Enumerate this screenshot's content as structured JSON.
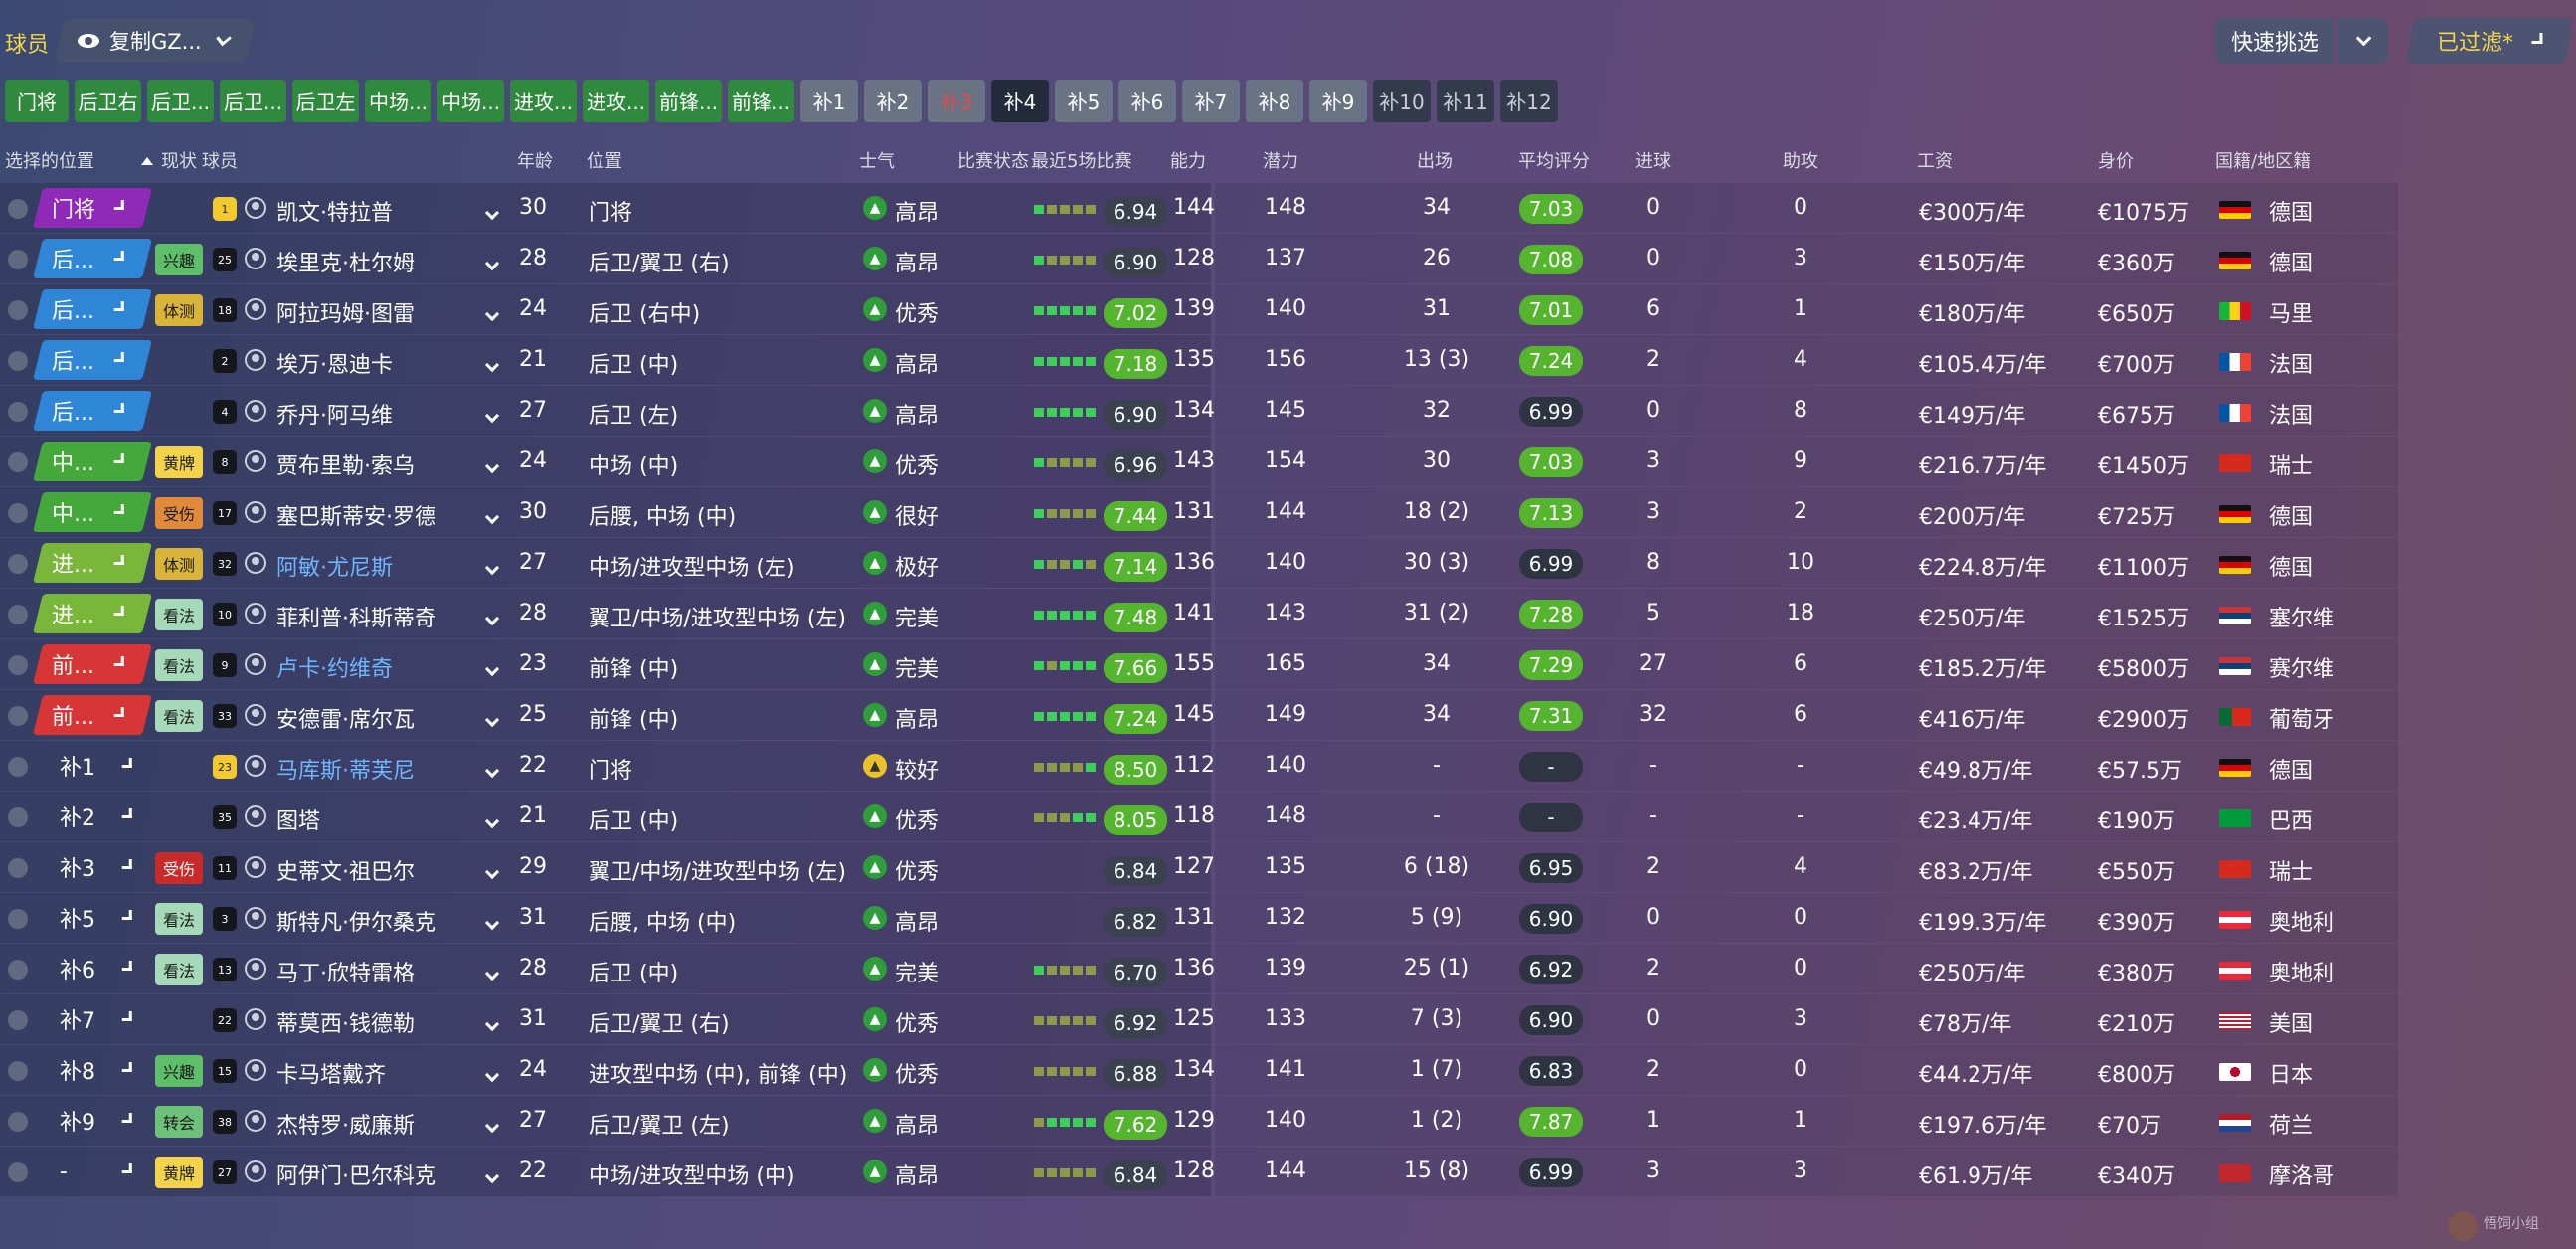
{
  "toolbar": {
    "section_label": "球员",
    "view_label": "复制GZ...",
    "quick_pick": "快速挑选",
    "filter_label": "已过滤*"
  },
  "chips": [
    {
      "label": "门将",
      "style": "g",
      "w": 64
    },
    {
      "label": "后卫右",
      "style": "g",
      "w": 67
    },
    {
      "label": "后卫...",
      "style": "g",
      "w": 67
    },
    {
      "label": "后卫...",
      "style": "g",
      "w": 67
    },
    {
      "label": "后卫左",
      "style": "g",
      "w": 67
    },
    {
      "label": "中场...",
      "style": "g",
      "w": 67
    },
    {
      "label": "中场...",
      "style": "g",
      "w": 67
    },
    {
      "label": "进攻...",
      "style": "g",
      "w": 67
    },
    {
      "label": "进攻...",
      "style": "g",
      "w": 67
    },
    {
      "label": "前锋...",
      "style": "g",
      "w": 67
    },
    {
      "label": "前锋...",
      "style": "g",
      "w": 67
    },
    {
      "label": "补1",
      "style": "s",
      "w": 58
    },
    {
      "label": "补2",
      "style": "s",
      "w": 58
    },
    {
      "label": "补3",
      "style": "r",
      "w": 58
    },
    {
      "label": "补4",
      "style": "d",
      "w": 58
    },
    {
      "label": "补5",
      "style": "s",
      "w": 58
    },
    {
      "label": "补6",
      "style": "s",
      "w": 58
    },
    {
      "label": "补7",
      "style": "s",
      "w": 58
    },
    {
      "label": "补8",
      "style": "s",
      "w": 58
    },
    {
      "label": "补9",
      "style": "s",
      "w": 58
    },
    {
      "label": "补10",
      "style": "k",
      "w": 58
    },
    {
      "label": "补11",
      "style": "k",
      "w": 58
    },
    {
      "label": "补12",
      "style": "k",
      "w": 58
    }
  ],
  "headers": {
    "sel_pos": "选择的位置",
    "status": "现状",
    "player": "球员",
    "age": "年龄",
    "position": "位置",
    "morale": "士气",
    "match_state": "比赛状态",
    "last5": "最近5场比赛",
    "ability": "能力",
    "potential": "潜力",
    "apps": "出场",
    "avg": "平均评分",
    "goals": "进球",
    "assists": "助攻",
    "wage": "工资",
    "value": "身价",
    "nation": "国籍/地区籍"
  },
  "players": [
    {
      "sel": "门将",
      "pc": "gk",
      "badge": "",
      "bc": "",
      "num": "1",
      "gk": true,
      "name": "凯文·特拉普",
      "link": false,
      "age": "30",
      "pos": "门将",
      "mood": "高昂",
      "my": false,
      "form": [
        1,
        0,
        0,
        0,
        0
      ],
      "avg": "6.94",
      "ag": false,
      "ab": "144",
      "pot": "148",
      "apps": "34",
      "rt": "7.03",
      "rg": true,
      "g": "0",
      "a": "0",
      "wage": "€300万/年",
      "val": "€1075万",
      "flag": "de",
      "nat": "德国"
    },
    {
      "sel": "后...",
      "pc": "df",
      "badge": "兴趣",
      "bc": "int",
      "num": "25",
      "gk": false,
      "name": "埃里克·杜尔姆",
      "link": false,
      "age": "28",
      "pos": "后卫/翼卫 (右)",
      "mood": "高昂",
      "my": false,
      "form": [
        1,
        0,
        0,
        0,
        0
      ],
      "avg": "6.90",
      "ag": false,
      "ab": "128",
      "pot": "137",
      "apps": "26",
      "rt": "7.08",
      "rg": true,
      "g": "0",
      "a": "3",
      "wage": "€150万/年",
      "val": "€360万",
      "flag": "de",
      "nat": "德国"
    },
    {
      "sel": "后...",
      "pc": "df",
      "badge": "体测",
      "bc": "fit",
      "num": "18",
      "gk": false,
      "name": "阿拉玛姆·图雷",
      "link": false,
      "age": "24",
      "pos": "后卫 (右中)",
      "mood": "优秀",
      "my": false,
      "form": [
        1,
        1,
        1,
        1,
        1
      ],
      "avg": "7.02",
      "ag": true,
      "ab": "139",
      "pot": "140",
      "apps": "31",
      "rt": "7.01",
      "rg": true,
      "g": "6",
      "a": "1",
      "wage": "€180万/年",
      "val": "€650万",
      "flag": "ml",
      "nat": "马里"
    },
    {
      "sel": "后...",
      "pc": "df",
      "badge": "",
      "bc": "",
      "num": "2",
      "gk": false,
      "name": "埃万·恩迪卡",
      "link": false,
      "age": "21",
      "pos": "后卫 (中)",
      "mood": "高昂",
      "my": false,
      "form": [
        1,
        1,
        1,
        1,
        1
      ],
      "avg": "7.18",
      "ag": true,
      "ab": "135",
      "pot": "156",
      "apps": "13 (3)",
      "rt": "7.24",
      "rg": true,
      "g": "2",
      "a": "4",
      "wage": "€105.4万/年",
      "val": "€700万",
      "flag": "fr",
      "nat": "法国"
    },
    {
      "sel": "后...",
      "pc": "df",
      "badge": "",
      "bc": "",
      "num": "4",
      "gk": false,
      "name": "乔丹·阿马维",
      "link": false,
      "age": "27",
      "pos": "后卫 (左)",
      "mood": "高昂",
      "my": false,
      "form": [
        1,
        1,
        1,
        1,
        1
      ],
      "avg": "6.90",
      "ag": false,
      "ab": "134",
      "pot": "145",
      "apps": "32",
      "rt": "6.99",
      "rg": false,
      "g": "0",
      "a": "8",
      "wage": "€149万/年",
      "val": "€675万",
      "flag": "fr",
      "nat": "法国"
    },
    {
      "sel": "中...",
      "pc": "mf",
      "badge": "黄牌",
      "bc": "yel",
      "num": "8",
      "gk": false,
      "name": "贾布里勒·索乌",
      "link": false,
      "age": "24",
      "pos": "中场 (中)",
      "mood": "优秀",
      "my": false,
      "form": [
        1,
        0,
        0,
        0,
        0
      ],
      "avg": "6.96",
      "ag": false,
      "ab": "143",
      "pot": "154",
      "apps": "30",
      "rt": "7.03",
      "rg": true,
      "g": "3",
      "a": "9",
      "wage": "€216.7万/年",
      "val": "€1450万",
      "flag": "ch",
      "nat": "瑞士"
    },
    {
      "sel": "中...",
      "pc": "mf",
      "badge": "受伤",
      "bc": "inj",
      "num": "17",
      "gk": false,
      "name": "塞巴斯蒂安·罗德",
      "link": false,
      "age": "30",
      "pos": "后腰, 中场 (中)",
      "mood": "很好",
      "my": false,
      "form": [
        1,
        0,
        0,
        0,
        0
      ],
      "avg": "7.44",
      "ag": true,
      "ab": "131",
      "pot": "144",
      "apps": "18 (2)",
      "rt": "7.13",
      "rg": true,
      "g": "3",
      "a": "2",
      "wage": "€200万/年",
      "val": "€725万",
      "flag": "de",
      "nat": "德国"
    },
    {
      "sel": "进...",
      "pc": "am",
      "badge": "体测",
      "bc": "fit",
      "num": "32",
      "gk": false,
      "name": "阿敏·尤尼斯",
      "link": true,
      "age": "27",
      "pos": "中场/进攻型中场 (左)",
      "mood": "极好",
      "my": false,
      "form": [
        1,
        0,
        0,
        1,
        0
      ],
      "avg": "7.14",
      "ag": true,
      "ab": "136",
      "pot": "140",
      "apps": "30 (3)",
      "rt": "6.99",
      "rg": false,
      "g": "8",
      "a": "10",
      "wage": "€224.8万/年",
      "val": "€1100万",
      "flag": "de",
      "nat": "德国"
    },
    {
      "sel": "进...",
      "pc": "am",
      "badge": "看法",
      "bc": "opn",
      "num": "10",
      "gk": false,
      "name": "菲利普·科斯蒂奇",
      "link": false,
      "age": "28",
      "pos": "翼卫/中场/进攻型中场 (左)",
      "mood": "完美",
      "my": false,
      "form": [
        1,
        1,
        1,
        1,
        1
      ],
      "avg": "7.48",
      "ag": true,
      "ab": "141",
      "pot": "143",
      "apps": "31 (2)",
      "rt": "7.28",
      "rg": true,
      "g": "5",
      "a": "18",
      "wage": "€250万/年",
      "val": "€1525万",
      "flag": "rs",
      "nat": "塞尔维"
    },
    {
      "sel": "前...",
      "pc": "fw",
      "badge": "看法",
      "bc": "opn",
      "num": "9",
      "gk": false,
      "name": "卢卡·约维奇",
      "link": true,
      "age": "23",
      "pos": "前锋 (中)",
      "mood": "完美",
      "my": false,
      "form": [
        1,
        0,
        1,
        1,
        1
      ],
      "avg": "7.66",
      "ag": true,
      "ab": "155",
      "pot": "165",
      "apps": "34",
      "rt": "7.29",
      "rg": true,
      "g": "27",
      "a": "6",
      "wage": "€185.2万/年",
      "val": "€5800万",
      "flag": "rs",
      "nat": "赛尔维"
    },
    {
      "sel": "前...",
      "pc": "fw",
      "badge": "看法",
      "bc": "opn",
      "num": "33",
      "gk": false,
      "name": "安德雷·席尔瓦",
      "link": false,
      "age": "25",
      "pos": "前锋 (中)",
      "mood": "高昂",
      "my": false,
      "form": [
        1,
        1,
        1,
        1,
        1
      ],
      "avg": "7.24",
      "ag": true,
      "ab": "145",
      "pot": "149",
      "apps": "34",
      "rt": "7.31",
      "rg": true,
      "g": "32",
      "a": "6",
      "wage": "€416万/年",
      "val": "€2900万",
      "flag": "pt",
      "nat": "葡萄牙"
    },
    {
      "sel": "补1",
      "pc": "sb",
      "badge": "",
      "bc": "",
      "num": "23",
      "gk": true,
      "name": "马库斯·蒂芙尼",
      "link": true,
      "age": "22",
      "pos": "门将",
      "mood": "较好",
      "my": true,
      "form": [
        0,
        0,
        0,
        0,
        1
      ],
      "avg": "8.50",
      "ag": true,
      "ab": "112",
      "pot": "140",
      "apps": "-",
      "rt": "-",
      "rg": false,
      "g": "-",
      "a": "-",
      "wage": "€49.8万/年",
      "val": "€57.5万",
      "flag": "de",
      "nat": "德国"
    },
    {
      "sel": "补2",
      "pc": "sb",
      "badge": "",
      "bc": "",
      "num": "35",
      "gk": false,
      "name": "图塔",
      "link": false,
      "age": "21",
      "pos": "后卫 (中)",
      "mood": "优秀",
      "my": false,
      "form": [
        0,
        0,
        0,
        1,
        1
      ],
      "avg": "8.05",
      "ag": true,
      "ab": "118",
      "pot": "148",
      "apps": "-",
      "rt": "-",
      "rg": false,
      "g": "-",
      "a": "-",
      "wage": "€23.4万/年",
      "val": "€190万",
      "flag": "br",
      "nat": "巴西"
    },
    {
      "sel": "补3",
      "pc": "sb",
      "badge": "受伤",
      "bc": "ijr",
      "num": "11",
      "gk": false,
      "name": "史蒂文·祖巴尔",
      "link": false,
      "age": "29",
      "pos": "翼卫/中场/进攻型中场 (左)",
      "mood": "优秀",
      "my": false,
      "form": [],
      "avg": "6.84",
      "ag": false,
      "ab": "127",
      "pot": "135",
      "apps": "6 (18)",
      "rt": "6.95",
      "rg": false,
      "g": "2",
      "a": "4",
      "wage": "€83.2万/年",
      "val": "€550万",
      "flag": "ch",
      "nat": "瑞士"
    },
    {
      "sel": "补5",
      "pc": "sb",
      "badge": "看法",
      "bc": "opn",
      "num": "3",
      "gk": false,
      "name": "斯特凡·伊尔桑克",
      "link": false,
      "age": "31",
      "pos": "后腰, 中场 (中)",
      "mood": "高昂",
      "my": false,
      "form": [],
      "avg": "6.82",
      "ag": false,
      "ab": "131",
      "pot": "132",
      "apps": "5 (9)",
      "rt": "6.90",
      "rg": false,
      "g": "0",
      "a": "0",
      "wage": "€199.3万/年",
      "val": "€390万",
      "flag": "at",
      "nat": "奥地利"
    },
    {
      "sel": "补6",
      "pc": "sb",
      "badge": "看法",
      "bc": "opn",
      "num": "13",
      "gk": false,
      "name": "马丁·欣特雷格",
      "link": false,
      "age": "28",
      "pos": "后卫 (中)",
      "mood": "完美",
      "my": false,
      "form": [
        1,
        0,
        0,
        0,
        0
      ],
      "avg": "6.70",
      "ag": false,
      "ab": "136",
      "pot": "139",
      "apps": "25 (1)",
      "rt": "6.92",
      "rg": false,
      "g": "2",
      "a": "0",
      "wage": "€250万/年",
      "val": "€380万",
      "flag": "at",
      "nat": "奥地利"
    },
    {
      "sel": "补7",
      "pc": "sb",
      "badge": "",
      "bc": "",
      "num": "22",
      "gk": false,
      "name": "蒂莫西·钱德勒",
      "link": false,
      "age": "31",
      "pos": "后卫/翼卫 (右)",
      "mood": "优秀",
      "my": false,
      "form": [
        0,
        0,
        0,
        0,
        0
      ],
      "avg": "6.92",
      "ag": false,
      "ab": "125",
      "pot": "133",
      "apps": "7 (3)",
      "rt": "6.90",
      "rg": false,
      "g": "0",
      "a": "3",
      "wage": "€78万/年",
      "val": "€210万",
      "flag": "us",
      "nat": "美国"
    },
    {
      "sel": "补8",
      "pc": "sb",
      "badge": "兴趣",
      "bc": "int",
      "num": "15",
      "gk": false,
      "name": "卡马塔戴齐",
      "link": false,
      "age": "24",
      "pos": "进攻型中场 (中), 前锋 (中)",
      "mood": "优秀",
      "my": false,
      "form": [
        0,
        0,
        0,
        0,
        0
      ],
      "avg": "6.88",
      "ag": false,
      "ab": "134",
      "pot": "141",
      "apps": "1 (7)",
      "rt": "6.83",
      "rg": false,
      "g": "2",
      "a": "0",
      "wage": "€44.2万/年",
      "val": "€800万",
      "flag": "jp",
      "nat": "日本"
    },
    {
      "sel": "补9",
      "pc": "sb",
      "badge": "转会",
      "bc": "tr",
      "num": "38",
      "gk": false,
      "name": "杰特罗·威廉斯",
      "link": false,
      "age": "27",
      "pos": "后卫/翼卫 (左)",
      "mood": "高昂",
      "my": false,
      "form": [
        0,
        1,
        1,
        1,
        1
      ],
      "avg": "7.62",
      "ag": true,
      "ab": "129",
      "pot": "140",
      "apps": "1 (2)",
      "rt": "7.87",
      "rg": true,
      "g": "1",
      "a": "1",
      "wage": "€197.6万/年",
      "val": "€70万",
      "flag": "nl",
      "nat": "荷兰"
    },
    {
      "sel": "-",
      "pc": "sb",
      "badge": "黄牌",
      "bc": "yel",
      "num": "27",
      "gk": false,
      "name": "阿伊门·巴尔科克",
      "link": false,
      "age": "22",
      "pos": "中场/进攻型中场 (中)",
      "mood": "高昂",
      "my": false,
      "form": [
        0,
        0,
        0,
        0,
        0
      ],
      "avg": "6.84",
      "ag": false,
      "ab": "128",
      "pot": "144",
      "apps": "15 (8)",
      "rt": "6.99",
      "rg": false,
      "g": "3",
      "a": "3",
      "wage": "€61.9万/年",
      "val": "€340万",
      "flag": "ma",
      "nat": "摩洛哥"
    }
  ],
  "flags": {
    "de": "linear-gradient(#111 0 33%,#d00 33% 66%,#fc0 66%)",
    "ml": "linear-gradient(90deg,#14b53a 0 33%,#fcd116 33% 66%,#ce1126 66%)",
    "fr": "linear-gradient(90deg,#0055a4 0 33%,#fff 33% 66%,#ef4135 66%)",
    "ch": "#d52b1e",
    "rs": "linear-gradient(#c6363c 0 33%,#0c4076 33% 66%,#fff 66%)",
    "pt": "linear-gradient(90deg,#046a38 0 40%,#da291c 40%)",
    "br": "#009c3b",
    "at": "linear-gradient(#ed2939 0 33%,#fff 33% 66%,#ed2939 66%)",
    "us": "repeating-linear-gradient(#b22234 0 2px,#fff 2px 4px)",
    "jp": "radial-gradient(circle,#bc002d 0 5px,#fff 5px)",
    "nl": "linear-gradient(#ae1c28 0 33%,#fff 33% 66%,#21468b 66%)",
    "ma": "#c1272d"
  },
  "watermark": "悟饲小组"
}
